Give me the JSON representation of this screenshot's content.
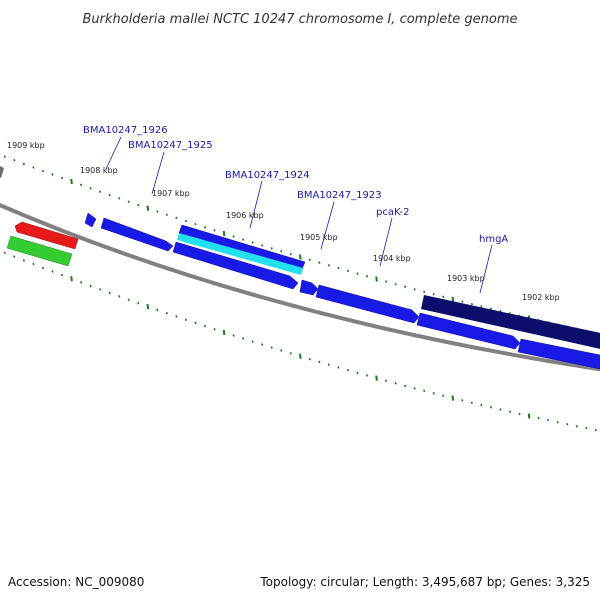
{
  "title": "Burkholderia mallei NCTC 10247 chromosome I, complete genome",
  "colors": {
    "backbone": "#808080",
    "tick": "#1a7a1a",
    "blue_gene": "#1a1ae6",
    "navy_gene": "#0d0d6b",
    "cyan_gene": "#22e0ee",
    "red_gene": "#e61a1a",
    "green_gene": "#33cc33",
    "gray_gene": "#6e6e6e",
    "label_line": "#1a1aa0"
  },
  "kbp_labels": [
    "1909 kbp",
    "1908 kbp",
    "1907 kbp",
    "1906 kbp",
    "1905 kbp",
    "1904 kbp",
    "1903 kbp",
    "1902 kbp"
  ],
  "gene_labels": [
    "BMA10247_1926",
    "BMA10247_1925",
    "BMA10247_1924",
    "BMA10247_1923",
    "pcaK-2",
    "hmgA"
  ],
  "footer": {
    "accession": "Accession: NC_009080",
    "topology": "Topology: circular; Length: 3,495,687 bp; Genes: 3,325"
  }
}
